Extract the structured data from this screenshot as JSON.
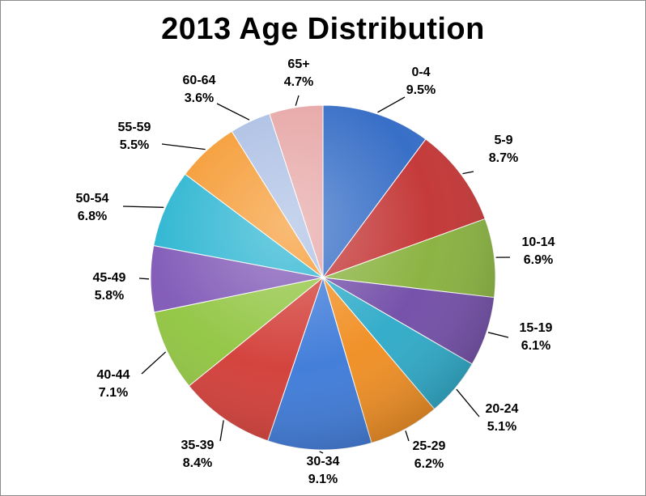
{
  "chart_data": {
    "type": "pie",
    "title": "2013 Age Distribution",
    "categories": [
      "0-4",
      "5-9",
      "10-14",
      "15-19",
      "20-24",
      "25-29",
      "30-34",
      "35-39",
      "40-44",
      "45-49",
      "50-54",
      "55-59",
      "60-64",
      "65+"
    ],
    "values": [
      9.5,
      8.7,
      6.9,
      6.1,
      5.1,
      6.2,
      9.1,
      8.4,
      7.1,
      5.8,
      6.8,
      5.5,
      3.6,
      4.7
    ],
    "value_labels": [
      "9.5%",
      "8.7%",
      "6.9%",
      "6.1%",
      "5.1%",
      "6.2%",
      "9.1%",
      "8.4%",
      "7.1%",
      "5.8%",
      "6.8%",
      "5.5%",
      "3.6%",
      "4.7%"
    ],
    "colors": [
      "#2e68c4",
      "#c23030",
      "#86b03a",
      "#6f4aa6",
      "#2aa9c8",
      "#f08c1e",
      "#3a78d8",
      "#d23a34",
      "#8fc43e",
      "#7d55b5",
      "#25b3d0",
      "#f5962a",
      "#a9bde3",
      "#e6a3a3"
    ],
    "legend": "none",
    "start_angle": "12 o'clock",
    "direction": "clockwise"
  }
}
